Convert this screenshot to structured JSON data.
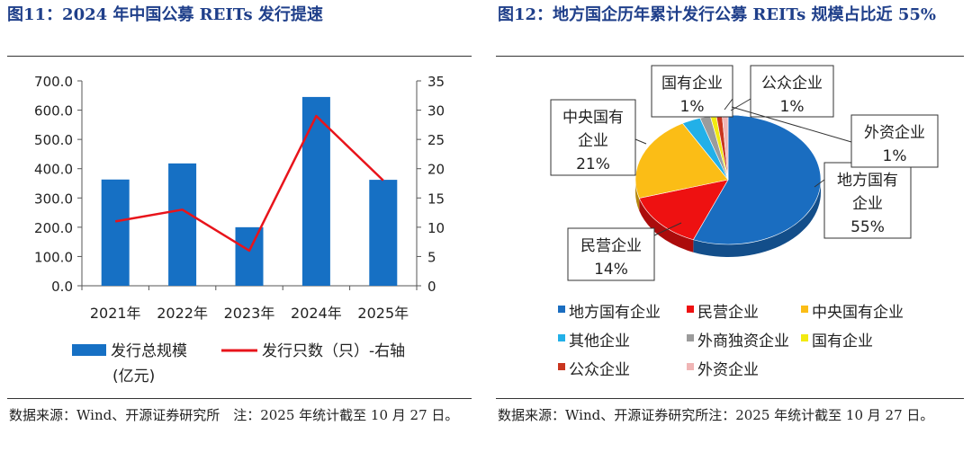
{
  "left_panel": {
    "title": "图11：2024 年中国公募 REITs 发行提速",
    "source": "数据来源：Wind、开源证券研究所　注：2025 年统计截至 10 月 27 日。"
  },
  "right_panel": {
    "title": "图12：地方国企历年累计发行公募 REITs 规模占比近 55%",
    "source": "数据来源：Wind、开源证券研究所注：2025 年统计截至 10 月 27 日。"
  },
  "chart_data": [
    {
      "type": "bar",
      "categories": [
        "2021年",
        "2022年",
        "2023年",
        "2024年",
        "2025年"
      ],
      "series": [
        {
          "name": "发行总规模",
          "legend_label": "发行总规模",
          "legend_label_line2": "(亿元)",
          "axis": "left",
          "kind": "bar",
          "color": "#1670c4",
          "values": [
            363,
            418,
            200,
            645,
            362
          ]
        },
        {
          "name": "发行只数（只）-右轴",
          "legend_label": "发行只数（只）-右轴",
          "axis": "right",
          "kind": "line",
          "color": "#e8141b",
          "values": [
            11,
            13,
            6,
            29,
            18
          ]
        }
      ],
      "ylim": [
        0,
        700
      ],
      "ytick_labels": [
        "0.0",
        "100.0",
        "200.0",
        "300.0",
        "400.0",
        "500.0",
        "600.0",
        "700.0"
      ],
      "y2lim": [
        0,
        35
      ],
      "y2tick_labels": [
        "0",
        "5",
        "10",
        "15",
        "20",
        "25",
        "30",
        "35"
      ]
    },
    {
      "type": "pie",
      "slices": [
        {
          "name": "地方国有企业",
          "value": 55,
          "color": "#1a6dc0",
          "label_line1": "地方国有",
          "label_line2": "企业",
          "pct": "55%"
        },
        {
          "name": "民营企业",
          "value": 14,
          "color": "#ee1111",
          "label_line1": "民营企业",
          "label_line2": "",
          "pct": "14%"
        },
        {
          "name": "中央国有企业",
          "value": 21,
          "color": "#fbbd16",
          "label_line1": "中央国有",
          "label_line2": "企业",
          "pct": "21%"
        },
        {
          "name": "其他企业",
          "value": 3.2,
          "color": "#22b0e8",
          "label_line1": "",
          "label_line2": "",
          "pct": ""
        },
        {
          "name": "外商独资企业",
          "value": 1.8,
          "color": "#9b9b9b",
          "label_line1": "",
          "label_line2": "",
          "pct": ""
        },
        {
          "name": "国有企业",
          "value": 1,
          "color": "#f2ea10",
          "label_line1": "国有企业",
          "label_line2": "",
          "pct": "1%"
        },
        {
          "name": "公众企业",
          "value": 1,
          "color": "#c9351f",
          "label_line1": "公众企业",
          "label_line2": "",
          "pct": "1%"
        },
        {
          "name": "外资企业",
          "value": 1,
          "color": "#f0b5b5",
          "label_line1": "外资企业",
          "label_line2": "",
          "pct": "1%"
        }
      ]
    }
  ]
}
